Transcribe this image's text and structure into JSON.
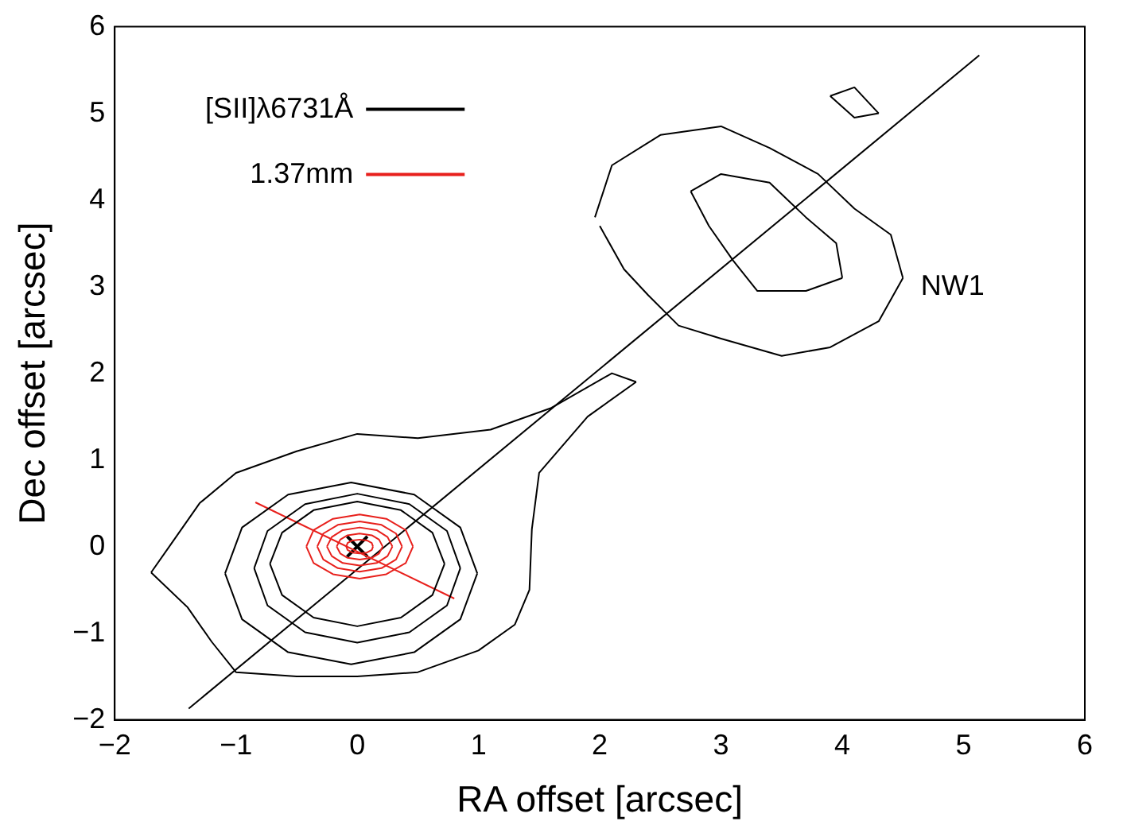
{
  "chart_data": {
    "type": "line",
    "xlabel": "RA offset [arcsec]",
    "ylabel": "Dec offset [arcsec]",
    "xlim": [
      -2,
      6
    ],
    "ylim": [
      -2,
      6
    ],
    "xticks": [
      {
        "value": -2,
        "label": "−2"
      },
      {
        "value": -1,
        "label": "−1"
      },
      0,
      1,
      2,
      3,
      4,
      5,
      6
    ],
    "yticks": [
      {
        "value": -2,
        "label": "−2"
      },
      {
        "value": -1,
        "label": "−1"
      },
      0,
      1,
      2,
      3,
      4,
      5,
      6
    ],
    "grid": false,
    "legend": "top left",
    "marker": "none",
    "line_style": "solid",
    "annotations": [
      "NW1"
    ],
    "series": [
      {
        "name": "[SII]λ6731Å",
        "color": "#000000",
        "x": [
          -0.72,
          -0.62,
          -0.36,
          0,
          0.36,
          0.62,
          0.72
        ],
        "values": [
          -0.2,
          0.16,
          0.42,
          0.52,
          0.42,
          0.16,
          -0.2
        ]
      },
      {
        "name": "1.37mm",
        "color": "#e8201c",
        "x": [
          -0.42,
          -0.36,
          -0.2,
          0.02,
          0.24,
          0.4,
          0.46
        ],
        "values": [
          0,
          0.19,
          0.32,
          0.37,
          0.32,
          0.19,
          0
        ]
      },
      {
        "color": "#000000",
        "x": [
          -0.72,
          -0.62,
          -0.36,
          0,
          0.36,
          0.62,
          0.72
        ],
        "values": [
          -0.2,
          -0.56,
          -0.82,
          -0.92,
          -0.82,
          -0.56,
          -0.2
        ]
      },
      {
        "color": "#000000",
        "x": [
          -0.85,
          -0.74,
          -0.43,
          0,
          0.43,
          0.74,
          0.85
        ],
        "values": [
          -0.25,
          0.18,
          0.49,
          0.61,
          0.49,
          0.18,
          -0.25
        ]
      },
      {
        "color": "#000000",
        "x": [
          -0.85,
          -0.74,
          -0.43,
          0,
          0.43,
          0.74,
          0.85
        ],
        "values": [
          -0.25,
          -0.68,
          -0.99,
          -1.11,
          -0.99,
          -0.68,
          -0.25
        ]
      },
      {
        "color": "#000000",
        "x": [
          -1.09,
          -0.95,
          -0.57,
          -0.05,
          0.47,
          0.85,
          0.99
        ],
        "values": [
          -0.31,
          0.22,
          0.6,
          0.74,
          0.6,
          0.22,
          -0.31
        ]
      },
      {
        "color": "#000000",
        "x": [
          -1.09,
          -0.95,
          -0.57,
          -0.05,
          0.47,
          0.85,
          0.99
        ],
        "values": [
          -0.31,
          -0.84,
          -1.22,
          -1.36,
          -1.22,
          -0.84,
          -0.31
        ]
      },
      {
        "color": "#000000",
        "x": [
          -1.7,
          -1.55,
          -1.3,
          -1.0,
          -0.5,
          0,
          0.5,
          1.1,
          1.6,
          2.1,
          2.3
        ],
        "values": [
          -0.3,
          0,
          0.5,
          0.85,
          1.1,
          1.3,
          1.25,
          1.35,
          1.6,
          2.0,
          1.9
        ]
      },
      {
        "color": "#000000",
        "x": [
          -1.7,
          -1.4,
          -1.2,
          -1.0,
          -0.5,
          0,
          0.5,
          1.0,
          1.3,
          1.42,
          1.44,
          1.5,
          1.9,
          2.3
        ],
        "values": [
          -0.3,
          -0.7,
          -1.1,
          -1.45,
          -1.5,
          -1.5,
          -1.45,
          -1.2,
          -0.9,
          -0.5,
          0.2,
          0.85,
          1.5,
          1.9
        ]
      },
      {
        "color": "#000000",
        "x": [
          1.96,
          2.1,
          2.5,
          3.0,
          3.4,
          3.8,
          4.1,
          4.4,
          4.5
        ],
        "values": [
          3.8,
          4.4,
          4.75,
          4.85,
          4.6,
          4.3,
          3.9,
          3.6,
          3.1
        ]
      },
      {
        "color": "#000000",
        "x": [
          2.0,
          2.2,
          2.4,
          2.65,
          3.0,
          3.5,
          3.9,
          4.3,
          4.5
        ],
        "values": [
          3.7,
          3.2,
          2.9,
          2.55,
          2.4,
          2.2,
          2.3,
          2.6,
          3.1
        ]
      },
      {
        "color": "#000000",
        "x": [
          2.75,
          3.0,
          3.4,
          3.7,
          3.95,
          4.0
        ],
        "values": [
          4.1,
          4.3,
          4.2,
          3.8,
          3.5,
          3.1
        ]
      },
      {
        "color": "#000000",
        "x": [
          2.75,
          2.9,
          3.1,
          3.3,
          3.7,
          4.0
        ],
        "values": [
          4.1,
          3.7,
          3.3,
          2.95,
          2.95,
          3.1
        ]
      },
      {
        "color": "#000000",
        "x": [
          3.9,
          4.1,
          4.3
        ],
        "values": [
          5.2,
          5.3,
          5.0
        ]
      },
      {
        "color": "#000000",
        "x": [
          3.9,
          4.1,
          4.3
        ],
        "values": [
          5.2,
          4.95,
          5.0
        ]
      },
      {
        "color": "#e8201c",
        "x": [
          -0.42,
          -0.36,
          -0.2,
          0.02,
          0.24,
          0.4,
          0.46
        ],
        "values": [
          0,
          -0.19,
          -0.32,
          -0.37,
          -0.32,
          -0.19,
          0
        ]
      },
      {
        "color": "#e8201c",
        "x": [
          -0.33,
          -0.28,
          -0.16,
          0.02,
          0.2,
          0.32,
          0.37
        ],
        "values": [
          0,
          0.15,
          0.25,
          0.29,
          0.25,
          0.15,
          0
        ]
      },
      {
        "color": "#e8201c",
        "x": [
          -0.33,
          -0.28,
          -0.16,
          0.02,
          0.2,
          0.32,
          0.37
        ],
        "values": [
          0,
          -0.15,
          -0.25,
          -0.29,
          -0.25,
          -0.15,
          0
        ]
      },
      {
        "color": "#e8201c",
        "x": [
          -0.25,
          -0.21,
          -0.12,
          0.02,
          0.16,
          0.25,
          0.29
        ],
        "values": [
          0,
          0.11,
          0.19,
          0.22,
          0.19,
          0.11,
          0
        ]
      },
      {
        "color": "#e8201c",
        "x": [
          -0.25,
          -0.21,
          -0.12,
          0.02,
          0.16,
          0.25,
          0.29
        ],
        "values": [
          0,
          -0.11,
          -0.19,
          -0.22,
          -0.19,
          -0.11,
          0
        ]
      },
      {
        "color": "#e8201c",
        "x": [
          -0.17,
          -0.14,
          -0.08,
          0.02,
          0.12,
          0.18,
          0.21
        ],
        "values": [
          0,
          0.08,
          0.13,
          0.15,
          0.13,
          0.08,
          0
        ]
      },
      {
        "color": "#e8201c",
        "x": [
          -0.17,
          -0.14,
          -0.08,
          0.02,
          0.12,
          0.18,
          0.21
        ],
        "values": [
          0,
          -0.08,
          -0.13,
          -0.15,
          -0.13,
          -0.08,
          0
        ]
      },
      {
        "color": "#e8201c",
        "x": [
          -0.09,
          -0.08,
          -0.04,
          0.02,
          0.08,
          0.12,
          0.13
        ],
        "values": [
          0,
          0.04,
          0.07,
          0.08,
          0.07,
          0.04,
          0
        ]
      },
      {
        "color": "#e8201c",
        "x": [
          -0.09,
          -0.08,
          -0.04,
          0.02,
          0.08,
          0.12,
          0.13
        ],
        "values": [
          0,
          -0.04,
          -0.07,
          -0.08,
          -0.07,
          -0.04,
          0
        ]
      },
      {
        "color": "#e8201c",
        "x": [
          -0.84,
          0.8
        ],
        "values": [
          0.51,
          -0.6
        ]
      },
      {
        "color": "#000000",
        "x": [
          -1.39,
          5.13
        ],
        "values": [
          -1.87,
          5.67
        ]
      },
      {
        "type": "scatter",
        "marker": "cross",
        "color": "#000000",
        "x": [
          0
        ],
        "values": [
          0
        ]
      }
    ]
  }
}
